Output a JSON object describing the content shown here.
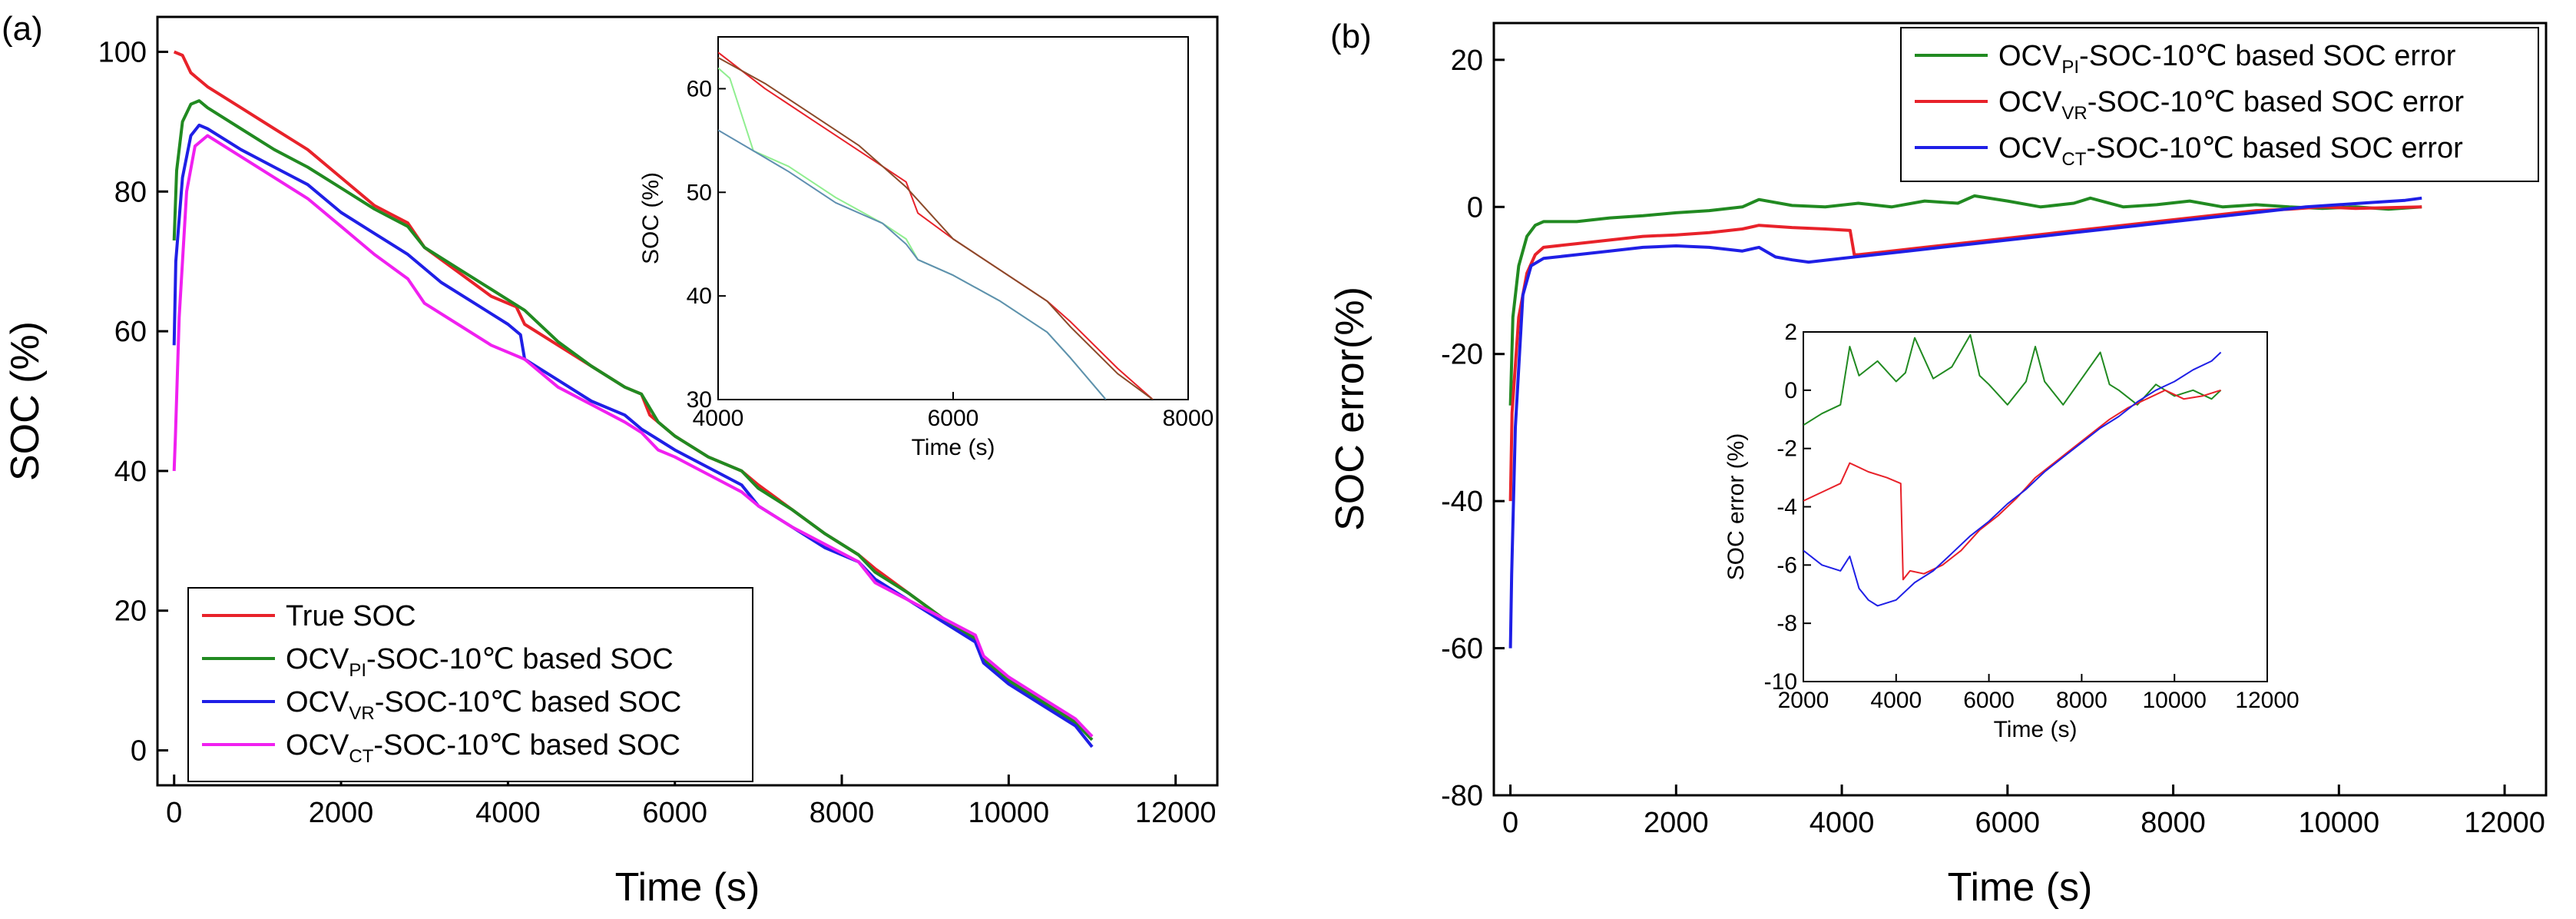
{
  "chart_data": [
    {
      "panel_label": "(a)",
      "type": "line",
      "xlabel": "Time (s)",
      "ylabel": "SOC (%)",
      "xlim": [
        -200,
        12500
      ],
      "ylim": [
        -5,
        105
      ],
      "xticks": [
        0,
        2000,
        4000,
        6000,
        8000,
        10000,
        12000
      ],
      "yticks": [
        0,
        20,
        40,
        60,
        80,
        100
      ],
      "legend_position": "bottom-left",
      "series": [
        {
          "name": "True SOC",
          "name_base": "True SOC",
          "name_sub": "",
          "name_tail": "",
          "color": "#e8222a",
          "x": [
            0,
            100,
            200,
            400,
            800,
            1200,
            1600,
            2000,
            2400,
            2800,
            3000,
            3400,
            3800,
            4100,
            4200,
            4600,
            5000,
            5400,
            5600,
            5700,
            6000,
            6400,
            6800,
            7000,
            7400,
            7800,
            8200,
            8400,
            8800,
            9200,
            9600,
            9700,
            10000,
            10400,
            10800,
            11000
          ],
          "y": [
            100,
            99.5,
            97,
            95,
            92,
            89,
            86,
            82,
            78,
            75.5,
            72,
            68.5,
            65,
            63.5,
            61,
            58,
            55,
            52,
            51,
            48,
            45,
            42,
            40,
            38,
            34.5,
            31,
            28,
            26,
            22.5,
            19,
            16,
            13,
            10,
            7,
            4,
            2
          ]
        },
        {
          "name": "OCVPI-SOC-10℃ based SOC",
          "name_base": "OCV",
          "name_sub": "PI",
          "name_tail": "-SOC-10℃ based SOC",
          "color": "#218a21",
          "x": [
            0,
            30,
            100,
            200,
            300,
            400,
            800,
            1200,
            1600,
            2000,
            2400,
            2800,
            3000,
            3400,
            3800,
            4200,
            4600,
            5000,
            5400,
            5600,
            5800,
            6000,
            6400,
            6800,
            7000,
            7400,
            7800,
            8200,
            8400,
            8800,
            9200,
            9600,
            9700,
            10000,
            10400,
            10800,
            11000
          ],
          "y": [
            73,
            83,
            90,
            92.5,
            93,
            92,
            89,
            86,
            83.5,
            80.5,
            77.5,
            75,
            72,
            69,
            66,
            63,
            58.5,
            55,
            52,
            51,
            47,
            45,
            42,
            40,
            37.5,
            34.5,
            31,
            28,
            25.5,
            22.5,
            19,
            16,
            13,
            10,
            7,
            4,
            1.5
          ]
        },
        {
          "name": "OCVVR-SOC-10℃ based SOC",
          "name_base": "OCV",
          "name_sub": "VR",
          "name_tail": "-SOC-10℃ based SOC",
          "color": "#1f1fe6",
          "x": [
            0,
            20,
            100,
            200,
            300,
            400,
            800,
            1200,
            1600,
            2000,
            2400,
            2800,
            3200,
            3600,
            4000,
            4150,
            4200,
            4600,
            5000,
            5400,
            5600,
            5800,
            6000,
            6400,
            6800,
            7000,
            7400,
            7800,
            8200,
            8400,
            8800,
            9200,
            9600,
            9700,
            10000,
            10400,
            10800,
            11000
          ],
          "y": [
            58,
            70,
            82,
            88,
            89.5,
            89,
            86,
            83.5,
            81,
            77,
            74,
            71,
            67,
            64,
            61,
            59.5,
            56,
            53,
            50,
            48,
            46,
            44.5,
            43,
            40.5,
            38,
            35,
            32,
            29,
            27,
            24.5,
            21.5,
            18.5,
            15.5,
            12.5,
            9.5,
            6.5,
            3.5,
            0.5
          ]
        },
        {
          "name": "OCVCT-SOC-10℃ based SOC",
          "name_base": "OCV",
          "name_sub": "CT",
          "name_tail": "-SOC-10℃ based SOC",
          "color": "#f020f0",
          "x": [
            0,
            15,
            60,
            150,
            250,
            400,
            800,
            1200,
            1600,
            2000,
            2400,
            2800,
            3000,
            3400,
            3800,
            4200,
            4600,
            5000,
            5400,
            5600,
            5800,
            6000,
            6400,
            6800,
            7000,
            7400,
            7800,
            8200,
            8400,
            8800,
            9200,
            9600,
            9700,
            10000,
            10400,
            10800,
            11000
          ],
          "y": [
            40,
            45,
            62,
            80,
            86.5,
            88,
            85,
            82,
            79,
            75,
            71,
            67.5,
            64,
            61,
            58,
            56,
            52,
            49.5,
            47,
            45.5,
            43,
            42,
            39.5,
            37,
            35,
            32,
            29.5,
            27,
            24,
            21.5,
            19,
            16.5,
            13.5,
            10.5,
            7.5,
            4.5,
            2
          ]
        }
      ],
      "inset": {
        "xlabel": "Time (s)",
        "ylabel": "SOC (%)",
        "xlim": [
          4000,
          8000
        ],
        "ylim": [
          30,
          65
        ],
        "xticks": [
          4000,
          6000,
          8000
        ],
        "yticks": [
          30,
          40,
          50,
          60
        ],
        "series": [
          {
            "color": "#e8222a",
            "x": [
              4000,
              4400,
              4800,
              5200,
              5600,
              5700,
              6000,
              6400,
              6800,
              7000,
              7400,
              7700
            ],
            "y": [
              63.5,
              60,
              57,
              54,
              51,
              48,
              45.5,
              42.5,
              39.5,
              37.5,
              33,
              30
            ]
          },
          {
            "color": "#8b4a2a",
            "x": [
              4000,
              4400,
              4800,
              5200,
              5600,
              5800,
              6000,
              6400,
              6800,
              7000,
              7400,
              7700
            ],
            "y": [
              63,
              60.5,
              57.5,
              54.5,
              50.5,
              48,
              45.5,
              42.5,
              39.5,
              37,
              32.5,
              30
            ]
          },
          {
            "color": "#90ee90",
            "x": [
              4000,
              4100,
              4300,
              4600,
              5000,
              5400,
              5600,
              5700,
              6000,
              6400,
              6800,
              7000,
              7300
            ],
            "y": [
              62,
              61,
              54,
              52.5,
              49.5,
              47,
              45.5,
              43.5,
              42,
              39.5,
              36.5,
              34,
              30
            ]
          },
          {
            "color": "#5f8fb0",
            "x": [
              4000,
              4300,
              4600,
              5000,
              5400,
              5600,
              5700,
              6000,
              6400,
              6800,
              7000,
              7300
            ],
            "y": [
              56,
              54,
              52,
              49,
              47,
              45,
              43.5,
              42,
              39.5,
              36.5,
              34,
              30
            ]
          }
        ]
      }
    },
    {
      "panel_label": "(b)",
      "type": "line",
      "xlabel": "Time (s)",
      "ylabel": "SOC error(%)",
      "xlim": [
        -200,
        12500
      ],
      "ylim": [
        -80,
        25
      ],
      "xticks": [
        0,
        2000,
        4000,
        6000,
        8000,
        10000,
        12000
      ],
      "yticks": [
        -80,
        -60,
        -40,
        -20,
        0,
        20
      ],
      "legend_position": "top-right",
      "series": [
        {
          "name": "OCVPI-SOC-10℃ based SOC error",
          "name_base": "OCV",
          "name_sub": "PI",
          "name_tail": "-SOC-10℃ based SOC error",
          "color": "#218a21",
          "x": [
            0,
            30,
            100,
            200,
            300,
            400,
            800,
            1200,
            1600,
            2000,
            2400,
            2800,
            3000,
            3400,
            3800,
            4200,
            4600,
            5000,
            5400,
            5600,
            6000,
            6400,
            6800,
            7000,
            7400,
            7800,
            8200,
            8600,
            9000,
            9400,
            9800,
            10200,
            10600,
            11000
          ],
          "y": [
            -27,
            -15,
            -8,
            -4,
            -2.5,
            -2,
            -2,
            -1.5,
            -1.2,
            -0.8,
            -0.5,
            0,
            1,
            0.2,
            0,
            0.5,
            0,
            0.8,
            0.5,
            1.5,
            0.8,
            0,
            0.5,
            1.2,
            0,
            0.3,
            0.8,
            0,
            0.3,
            0,
            -0.2,
            0,
            -0.3,
            0
          ]
        },
        {
          "name": "OCVVR-SOC-10℃ based SOC error",
          "name_base": "OCV",
          "name_sub": "VR",
          "name_tail": "-SOC-10℃ based SOC error",
          "color": "#e8222a",
          "x": [
            0,
            20,
            100,
            200,
            300,
            400,
            800,
            1200,
            1600,
            2000,
            2400,
            2800,
            3000,
            3400,
            3800,
            4100,
            4150,
            4200,
            4600,
            5000,
            5400,
            5800,
            6200,
            6600,
            7000,
            7400,
            7800,
            8200,
            8600,
            9000,
            9400,
            9800,
            10200,
            10600,
            11000
          ],
          "y": [
            -40,
            -28,
            -15,
            -9,
            -6.5,
            -5.5,
            -5,
            -4.5,
            -4,
            -3.8,
            -3.5,
            -3,
            -2.5,
            -2.8,
            -3,
            -3.2,
            -6.5,
            -6.5,
            -6,
            -5.5,
            -5,
            -4.5,
            -4,
            -3.5,
            -3,
            -2.5,
            -2,
            -1.5,
            -1,
            -0.5,
            -0.3,
            0,
            -0.2,
            -0.1,
            0
          ]
        },
        {
          "name": "OCVCT-SOC-10℃ based SOC error",
          "name_base": "OCV",
          "name_sub": "CT",
          "name_tail": "-SOC-10℃ based SOC error",
          "color": "#1f1fe6",
          "x": [
            0,
            15,
            60,
            150,
            250,
            400,
            800,
            1200,
            1600,
            2000,
            2400,
            2800,
            3000,
            3200,
            3400,
            3600,
            4000,
            4400,
            4800,
            5200,
            5600,
            6000,
            6400,
            6800,
            7200,
            7600,
            8000,
            8400,
            8800,
            9200,
            9600,
            10000,
            10400,
            10800,
            11000
          ],
          "y": [
            -60,
            -50,
            -30,
            -12,
            -8,
            -7,
            -6.5,
            -6,
            -5.5,
            -5.3,
            -5.5,
            -6,
            -5.5,
            -6.8,
            -7.2,
            -7.5,
            -7,
            -6.5,
            -6,
            -5.5,
            -5,
            -4.5,
            -4,
            -3.5,
            -3,
            -2.5,
            -2,
            -1.5,
            -1,
            -0.5,
            0,
            0.3,
            0.6,
            0.9,
            1.2
          ]
        }
      ],
      "inset": {
        "xlabel": "Time (s)",
        "ylabel": "SOC error (%)",
        "xlim": [
          2000,
          12000
        ],
        "ylim": [
          -10,
          2
        ],
        "xticks": [
          2000,
          4000,
          6000,
          8000,
          10000,
          12000
        ],
        "yticks": [
          -10,
          -8,
          -6,
          -4,
          -2,
          0,
          2
        ],
        "series": [
          {
            "color": "#218a21",
            "x": [
              2000,
              2400,
              2800,
              3000,
              3200,
              3600,
              4000,
              4200,
              4400,
              4800,
              5200,
              5600,
              5800,
              6000,
              6400,
              6800,
              7000,
              7200,
              7600,
              8000,
              8400,
              8600,
              8800,
              9200,
              9600,
              10000,
              10400,
              10800,
              11000
            ],
            "y": [
              -1.2,
              -0.8,
              -0.5,
              1.5,
              0.5,
              1,
              0.3,
              0.6,
              1.8,
              0.4,
              0.8,
              1.9,
              0.5,
              0.2,
              -0.5,
              0.3,
              1.5,
              0.3,
              -0.5,
              0.4,
              1.3,
              0.2,
              0,
              -0.5,
              0.2,
              -0.2,
              0,
              -0.3,
              0
            ]
          },
          {
            "color": "#e8222a",
            "x": [
              2000,
              2400,
              2800,
              3000,
              3400,
              3800,
              4100,
              4150,
              4300,
              4600,
              5000,
              5400,
              5800,
              6200,
              6600,
              7000,
              7400,
              7800,
              8200,
              8600,
              9000,
              9400,
              9800,
              10200,
              10600,
              11000
            ],
            "y": [
              -3.8,
              -3.5,
              -3.2,
              -2.5,
              -2.8,
              -3,
              -3.2,
              -6.5,
              -6.2,
              -6.3,
              -6,
              -5.5,
              -4.8,
              -4.3,
              -3.7,
              -3,
              -2.5,
              -2,
              -1.5,
              -1,
              -0.6,
              -0.3,
              0,
              -0.3,
              -0.2,
              0
            ]
          },
          {
            "color": "#1f1fe6",
            "x": [
              2000,
              2400,
              2800,
              3000,
              3200,
              3400,
              3600,
              4000,
              4400,
              4800,
              5200,
              5600,
              6000,
              6400,
              6800,
              7200,
              7600,
              8000,
              8400,
              8800,
              9200,
              9600,
              10000,
              10400,
              10800,
              11000
            ],
            "y": [
              -5.5,
              -6,
              -6.2,
              -5.7,
              -6.8,
              -7.2,
              -7.4,
              -7.2,
              -6.6,
              -6.2,
              -5.6,
              -5,
              -4.5,
              -3.9,
              -3.4,
              -2.8,
              -2.3,
              -1.8,
              -1.3,
              -0.9,
              -0.4,
              0,
              0.3,
              0.7,
              1,
              1.3
            ]
          }
        ]
      }
    }
  ]
}
